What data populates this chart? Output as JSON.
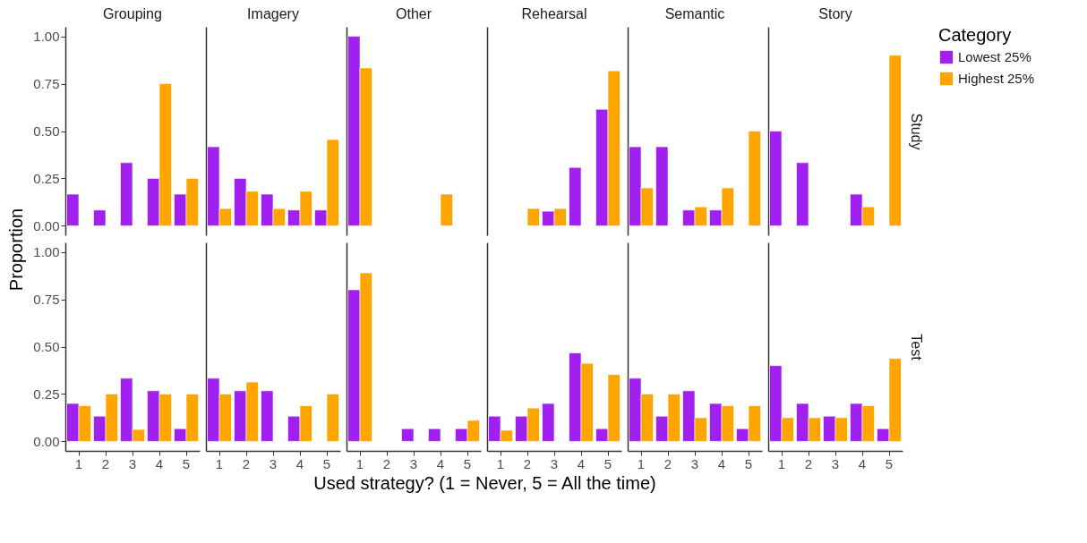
{
  "chart_data": [
    {
      "type": "bar",
      "title": "Grouping",
      "ylabel": "Proportion",
      "legend": "right",
      "legend_title": "Category",
      "tick_labels": "y",
      "categories": [
        "1",
        "2",
        "3",
        "4",
        "5"
      ],
      "ylim": [
        -0.05,
        1.05
      ],
      "yticks": [
        {
          "value": 0,
          "label": "0.00"
        },
        {
          "value": 0.25,
          "label": "0.25"
        },
        {
          "value": 0.5,
          "label": "0.50"
        },
        {
          "value": 0.75,
          "label": "0.75"
        },
        {
          "value": 1,
          "label": "1.00"
        }
      ],
      "series": [
        {
          "name": "Lowest 25%",
          "color": "#a020f0",
          "values": [
            0.167,
            0.083,
            0.333,
            0.25,
            0.167
          ]
        },
        {
          "name": "Highest 25%",
          "color": "#ffa500",
          "values": [
            null,
            null,
            null,
            0.75,
            0.25
          ]
        }
      ]
    },
    {
      "type": "bar",
      "title": "Imagery",
      "legend": "right",
      "tick_labels": false,
      "categories": [
        "1",
        "2",
        "3",
        "4",
        "5"
      ],
      "ylim": [
        -0.05,
        1.05
      ],
      "yticks": [
        {
          "value": 0,
          "label": "0.00"
        },
        {
          "value": 0.25,
          "label": "0.25"
        },
        {
          "value": 0.5,
          "label": "0.50"
        },
        {
          "value": 0.75,
          "label": "0.75"
        },
        {
          "value": 1,
          "label": "1.00"
        }
      ],
      "series": [
        {
          "name": "Lowest 25%",
          "color": "#a020f0",
          "values": [
            0.417,
            0.25,
            0.167,
            0.083,
            0.083
          ]
        },
        {
          "name": "Highest 25%",
          "color": "#ffa500",
          "values": [
            0.091,
            0.182,
            0.091,
            0.182,
            0.455
          ]
        }
      ]
    },
    {
      "type": "bar",
      "title": "Other",
      "legend": "right",
      "tick_labels": false,
      "categories": [
        "1",
        "2",
        "3",
        "4",
        "5"
      ],
      "ylim": [
        -0.05,
        1.05
      ],
      "yticks": [
        {
          "value": 0,
          "label": "0.00"
        },
        {
          "value": 0.25,
          "label": "0.25"
        },
        {
          "value": 0.5,
          "label": "0.50"
        },
        {
          "value": 0.75,
          "label": "0.75"
        },
        {
          "value": 1,
          "label": "1.00"
        }
      ],
      "series": [
        {
          "name": "Lowest 25%",
          "color": "#a020f0",
          "values": [
            1.0,
            null,
            null,
            null,
            null
          ]
        },
        {
          "name": "Highest 25%",
          "color": "#ffa500",
          "values": [
            0.833,
            null,
            null,
            0.167,
            null
          ]
        }
      ]
    },
    {
      "type": "bar",
      "title": "Rehearsal",
      "legend": "right",
      "tick_labels": false,
      "categories": [
        "1",
        "2",
        "3",
        "4",
        "5"
      ],
      "ylim": [
        -0.05,
        1.05
      ],
      "yticks": [
        {
          "value": 0,
          "label": "0.00"
        },
        {
          "value": 0.25,
          "label": "0.25"
        },
        {
          "value": 0.5,
          "label": "0.50"
        },
        {
          "value": 0.75,
          "label": "0.75"
        },
        {
          "value": 1,
          "label": "1.00"
        }
      ],
      "series": [
        {
          "name": "Lowest 25%",
          "color": "#a020f0",
          "values": [
            null,
            null,
            0.077,
            0.308,
            0.615
          ]
        },
        {
          "name": "Highest 25%",
          "color": "#ffa500",
          "values": [
            null,
            0.091,
            0.091,
            null,
            0.818
          ]
        }
      ]
    },
    {
      "type": "bar",
      "title": "Semantic",
      "legend": "right",
      "tick_labels": false,
      "categories": [
        "1",
        "2",
        "3",
        "4",
        "5"
      ],
      "ylim": [
        -0.05,
        1.05
      ],
      "yticks": [
        {
          "value": 0,
          "label": "0.00"
        },
        {
          "value": 0.25,
          "label": "0.25"
        },
        {
          "value": 0.5,
          "label": "0.50"
        },
        {
          "value": 0.75,
          "label": "0.75"
        },
        {
          "value": 1,
          "label": "1.00"
        }
      ],
      "series": [
        {
          "name": "Lowest 25%",
          "color": "#a020f0",
          "values": [
            0.417,
            0.417,
            0.083,
            0.083,
            null
          ]
        },
        {
          "name": "Highest 25%",
          "color": "#ffa500",
          "values": [
            0.2,
            null,
            0.1,
            0.2,
            0.5
          ]
        }
      ]
    },
    {
      "type": "bar",
      "title": "Story",
      "y2label": "Study",
      "legend": "right",
      "tick_labels": false,
      "categories": [
        "1",
        "2",
        "3",
        "4",
        "5"
      ],
      "ylim": [
        -0.05,
        1.05
      ],
      "yticks": [
        {
          "value": 0,
          "label": "0.00"
        },
        {
          "value": 0.25,
          "label": "0.25"
        },
        {
          "value": 0.5,
          "label": "0.50"
        },
        {
          "value": 0.75,
          "label": "0.75"
        },
        {
          "value": 1,
          "label": "1.00"
        }
      ],
      "series": [
        {
          "name": "Lowest 25%",
          "color": "#a020f0",
          "values": [
            0.5,
            0.333,
            null,
            0.167,
            null
          ]
        },
        {
          "name": "Highest 25%",
          "color": "#ffa500",
          "values": [
            null,
            null,
            null,
            0.1,
            0.9
          ]
        }
      ]
    },
    {
      "type": "bar",
      "legend": "right",
      "categories": [
        "1",
        "2",
        "3",
        "4",
        "5"
      ],
      "ylim": [
        -0.05,
        1.05
      ],
      "yticks": [
        {
          "value": 0,
          "label": "0.00"
        },
        {
          "value": 0.25,
          "label": "0.25"
        },
        {
          "value": 0.5,
          "label": "0.50"
        },
        {
          "value": 0.75,
          "label": "0.75"
        },
        {
          "value": 1,
          "label": "1.00"
        }
      ],
      "series": [
        {
          "name": "Lowest 25%",
          "color": "#a020f0",
          "values": [
            0.2,
            0.133,
            0.333,
            0.267,
            0.067
          ]
        },
        {
          "name": "Highest 25%",
          "color": "#ffa500",
          "values": [
            0.188,
            0.25,
            0.063,
            0.25,
            0.25
          ]
        }
      ]
    },
    {
      "type": "bar",
      "legend": "right",
      "tick_labels": "x",
      "categories": [
        "1",
        "2",
        "3",
        "4",
        "5"
      ],
      "ylim": [
        -0.05,
        1.05
      ],
      "yticks": [
        {
          "value": 0,
          "label": "0.00"
        },
        {
          "value": 0.25,
          "label": "0.25"
        },
        {
          "value": 0.5,
          "label": "0.50"
        },
        {
          "value": 0.75,
          "label": "0.75"
        },
        {
          "value": 1,
          "label": "1.00"
        }
      ],
      "series": [
        {
          "name": "Lowest 25%",
          "color": "#a020f0",
          "values": [
            0.333,
            0.267,
            0.267,
            0.133,
            null
          ]
        },
        {
          "name": "Highest 25%",
          "color": "#ffa500",
          "values": [
            0.25,
            0.313,
            null,
            0.188,
            0.25
          ]
        }
      ]
    },
    {
      "type": "bar",
      "xlabel": "Used strategy? (1 = Never, 5 = All the time)",
      "legend": "right",
      "tick_labels": "x",
      "categories": [
        "1",
        "2",
        "3",
        "4",
        "5"
      ],
      "ylim": [
        -0.05,
        1.05
      ],
      "yticks": [
        {
          "value": 0,
          "label": "0.00"
        },
        {
          "value": 0.25,
          "label": "0.25"
        },
        {
          "value": 0.5,
          "label": "0.50"
        },
        {
          "value": 0.75,
          "label": "0.75"
        },
        {
          "value": 1,
          "label": "1.00"
        }
      ],
      "series": [
        {
          "name": "Lowest 25%",
          "color": "#a020f0",
          "values": [
            0.8,
            null,
            0.067,
            0.067,
            0.067
          ]
        },
        {
          "name": "Highest 25%",
          "color": "#ffa500",
          "values": [
            0.889,
            null,
            null,
            null,
            0.111
          ]
        }
      ]
    },
    {
      "type": "bar",
      "legend": "right",
      "tick_labels": "x",
      "categories": [
        "1",
        "2",
        "3",
        "4",
        "5"
      ],
      "ylim": [
        -0.05,
        1.05
      ],
      "yticks": [
        {
          "value": 0,
          "label": "0.00"
        },
        {
          "value": 0.25,
          "label": "0.25"
        },
        {
          "value": 0.5,
          "label": "0.50"
        },
        {
          "value": 0.75,
          "label": "0.75"
        },
        {
          "value": 1,
          "label": "1.00"
        }
      ],
      "series": [
        {
          "name": "Lowest 25%",
          "color": "#a020f0",
          "values": [
            0.133,
            0.133,
            0.2,
            0.467,
            0.067
          ]
        },
        {
          "name": "Highest 25%",
          "color": "#ffa500",
          "values": [
            0.059,
            0.176,
            null,
            0.412,
            0.353
          ]
        }
      ]
    },
    {
      "type": "bar",
      "legend": "right",
      "tick_labels": "x",
      "categories": [
        "1",
        "2",
        "3",
        "4",
        "5"
      ],
      "ylim": [
        -0.05,
        1.05
      ],
      "yticks": [
        {
          "value": 0,
          "label": "0.00"
        },
        {
          "value": 0.25,
          "label": "0.25"
        },
        {
          "value": 0.5,
          "label": "0.50"
        },
        {
          "value": 0.75,
          "label": "0.75"
        },
        {
          "value": 1,
          "label": "1.00"
        }
      ],
      "series": [
        {
          "name": "Lowest 25%",
          "color": "#a020f0",
          "values": [
            0.333,
            0.133,
            0.267,
            0.2,
            0.067
          ]
        },
        {
          "name": "Highest 25%",
          "color": "#ffa500",
          "values": [
            0.25,
            0.25,
            0.125,
            0.188,
            0.188
          ]
        }
      ]
    },
    {
      "type": "bar",
      "y2label": "Test",
      "legend": "right",
      "tick_labels": "x",
      "categories": [
        "1",
        "2",
        "3",
        "4",
        "5"
      ],
      "ylim": [
        -0.05,
        1.05
      ],
      "yticks": [
        {
          "value": 0,
          "label": "0.00"
        },
        {
          "value": 0.25,
          "label": "0.25"
        },
        {
          "value": 0.5,
          "label": "0.50"
        },
        {
          "value": 0.75,
          "label": "0.75"
        },
        {
          "value": 1,
          "label": "1.00"
        }
      ],
      "series": [
        {
          "name": "Lowest 25%",
          "color": "#a020f0",
          "values": [
            0.4,
            0.2,
            0.133,
            0.2,
            0.067
          ]
        },
        {
          "name": "Highest 25%",
          "color": "#ffa500",
          "values": [
            0.125,
            0.125,
            0.125,
            0.188,
            0.438
          ]
        }
      ]
    }
  ]
}
